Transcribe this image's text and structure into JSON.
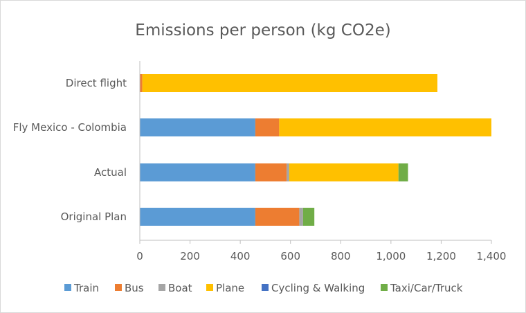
{
  "chart_data": {
    "type": "bar",
    "orientation": "horizontal",
    "stacked": true,
    "title": "Emissions per person (kg CO2e)",
    "xlabel": "",
    "ylabel": "",
    "xlim": [
      0,
      1400
    ],
    "x_ticks": [
      "0",
      "200",
      "400",
      "600",
      "800",
      "1,000",
      "1,200",
      "1,400"
    ],
    "x_tick_values": [
      0,
      200,
      400,
      600,
      800,
      1000,
      1200,
      1400
    ],
    "gridlines": false,
    "legend_position": "bottom",
    "categories": [
      "Direct flight",
      "Fly Mexico - Colombia",
      "Actual",
      "Original Plan"
    ],
    "series": [
      {
        "name": "Train",
        "color": "#5b9bd5",
        "values": [
          0,
          460,
          460,
          460
        ]
      },
      {
        "name": "Bus",
        "color": "#ed7d31",
        "values": [
          10,
          95,
          125,
          175
        ]
      },
      {
        "name": "Boat",
        "color": "#a5a5a5",
        "values": [
          0,
          0,
          10,
          15
        ]
      },
      {
        "name": "Plane",
        "color": "#ffc000",
        "values": [
          1175,
          845,
          435,
          0
        ]
      },
      {
        "name": "Cycling & Walking",
        "color": "#4472c4",
        "values": [
          0,
          0,
          0,
          0
        ]
      },
      {
        "name": "Taxi/Car/Truck",
        "color": "#70ad47",
        "values": [
          0,
          0,
          38,
          45
        ]
      }
    ]
  }
}
